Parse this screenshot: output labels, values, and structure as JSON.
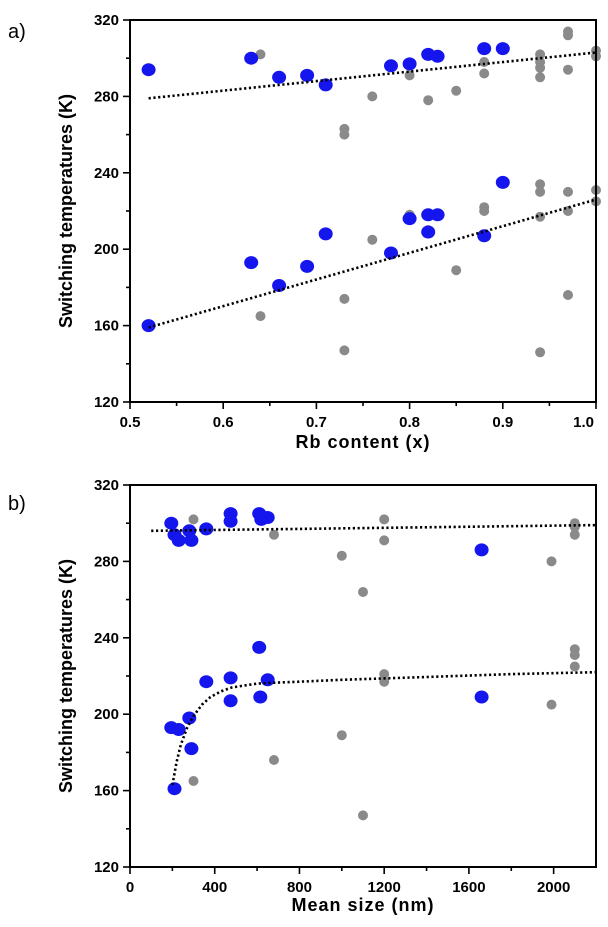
{
  "colors": {
    "blue": "#1515ee",
    "gray": "#8a8a8a",
    "axis": "#000000"
  },
  "chart_data": [
    {
      "type": "scatter",
      "panel_label": "a)",
      "title": "",
      "xlabel": "Rb content (x)",
      "ylabel": "Switching temperatures (K)",
      "xlim": [
        0.5,
        1.0
      ],
      "ylim": [
        120,
        320
      ],
      "xticks": [
        0.5,
        0.6,
        0.7,
        0.8,
        0.9,
        1.0
      ],
      "xtick_labels": [
        "0.5",
        "0.6",
        "0.7",
        "0.8",
        "0.9",
        "1.0"
      ],
      "yticks": [
        120,
        160,
        200,
        240,
        280,
        320
      ],
      "ytick_labels": [
        "120",
        "160",
        "200",
        "240",
        "280",
        "320"
      ],
      "grid": false,
      "series": [
        {
          "color": "#1515ee",
          "points": [
            [
              0.52,
              294
            ],
            [
              0.63,
              300
            ],
            [
              0.66,
              290
            ],
            [
              0.69,
              291
            ],
            [
              0.71,
              286
            ],
            [
              0.78,
              296
            ],
            [
              0.8,
              297
            ],
            [
              0.82,
              302
            ],
            [
              0.83,
              301
            ],
            [
              0.88,
              305
            ],
            [
              0.9,
              305
            ],
            [
              0.52,
              160
            ],
            [
              0.63,
              193
            ],
            [
              0.66,
              181
            ],
            [
              0.69,
              191
            ],
            [
              0.71,
              208
            ],
            [
              0.78,
              198
            ],
            [
              0.8,
              216
            ],
            [
              0.82,
              218
            ],
            [
              0.83,
              218
            ],
            [
              0.82,
              209
            ],
            [
              0.88,
              207
            ],
            [
              0.9,
              235
            ]
          ]
        },
        {
          "color": "#8a8a8a",
          "points": [
            [
              0.64,
              302
            ],
            [
              0.73,
              263
            ],
            [
              0.73,
              260
            ],
            [
              0.76,
              280
            ],
            [
              0.8,
              291
            ],
            [
              0.82,
              278
            ],
            [
              0.85,
              283
            ],
            [
              0.88,
              298
            ],
            [
              0.88,
              292
            ],
            [
              0.94,
              302
            ],
            [
              0.94,
              298
            ],
            [
              0.94,
              295
            ],
            [
              0.94,
              290
            ],
            [
              0.97,
              314
            ],
            [
              0.97,
              312
            ],
            [
              0.97,
              294
            ],
            [
              1.0,
              304
            ],
            [
              1.0,
              301
            ],
            [
              0.64,
              165
            ],
            [
              0.73,
              174
            ],
            [
              0.73,
              147
            ],
            [
              0.76,
              205
            ],
            [
              0.8,
              218
            ],
            [
              0.82,
              210
            ],
            [
              0.85,
              189
            ],
            [
              0.88,
              222
            ],
            [
              0.88,
              220
            ],
            [
              0.94,
              234
            ],
            [
              0.94,
              230
            ],
            [
              0.94,
              217
            ],
            [
              0.94,
              146
            ],
            [
              0.97,
              230
            ],
            [
              0.97,
              220
            ],
            [
              0.97,
              176
            ],
            [
              1.0,
              231
            ],
            [
              1.0,
              225
            ]
          ]
        }
      ],
      "fit_lines": [
        {
          "x": [
            0.52,
            1.0
          ],
          "y": [
            279,
            303
          ]
        },
        {
          "x": [
            0.52,
            1.0
          ],
          "y": [
            159,
            226
          ]
        }
      ]
    },
    {
      "type": "scatter",
      "panel_label": "b)",
      "title": "",
      "xlabel": "Mean size (nm)",
      "ylabel": "Switching temperatures (K)",
      "xlim": [
        0,
        2200
      ],
      "ylim": [
        120,
        320
      ],
      "xticks": [
        0,
        400,
        800,
        1200,
        1600,
        2000
      ],
      "xtick_labels": [
        "0",
        "400",
        "800",
        "1200",
        "1600",
        "2000"
      ],
      "yticks": [
        120,
        160,
        200,
        240,
        280,
        320
      ],
      "ytick_labels": [
        "120",
        "160",
        "200",
        "240",
        "280",
        "320"
      ],
      "grid": false,
      "series": [
        {
          "color": "#1515ee",
          "points": [
            [
              195,
              300
            ],
            [
              210,
              294
            ],
            [
              230,
              291
            ],
            [
              280,
              296
            ],
            [
              290,
              291
            ],
            [
              360,
              297
            ],
            [
              475,
              305
            ],
            [
              475,
              301
            ],
            [
              610,
              305
            ],
            [
              620,
              302
            ],
            [
              650,
              303
            ],
            [
              1660,
              286
            ],
            [
              195,
              193
            ],
            [
              210,
              161
            ],
            [
              230,
              192
            ],
            [
              280,
              198
            ],
            [
              290,
              182
            ],
            [
              360,
              217
            ],
            [
              475,
              207
            ],
            [
              475,
              219
            ],
            [
              610,
              235
            ],
            [
              615,
              209
            ],
            [
              650,
              218
            ],
            [
              1660,
              209
            ]
          ]
        },
        {
          "color": "#8a8a8a",
          "points": [
            [
              300,
              302
            ],
            [
              680,
              294
            ],
            [
              1000,
              283
            ],
            [
              1100,
              264
            ],
            [
              1200,
              302
            ],
            [
              1200,
              291
            ],
            [
              1990,
              280
            ],
            [
              2100,
              300
            ],
            [
              2100,
              298
            ],
            [
              2100,
              294
            ],
            [
              300,
              165
            ],
            [
              680,
              176
            ],
            [
              1000,
              189
            ],
            [
              1100,
              147
            ],
            [
              1200,
              221
            ],
            [
              1200,
              217
            ],
            [
              1990,
              205
            ],
            [
              2100,
              234
            ],
            [
              2100,
              231
            ],
            [
              2100,
              225
            ]
          ]
        }
      ],
      "fit_lines": [
        {
          "x": [
            100,
            2200
          ],
          "y": [
            296,
            299
          ]
        },
        {
          "x": [
            200,
            220,
            240,
            270,
            300,
            340,
            380,
            430,
            480,
            540,
            600,
            680,
            800,
            1000,
            1400,
            1800,
            2200
          ],
          "y": [
            163,
            175,
            184,
            193,
            199,
            205,
            209,
            212,
            214,
            215,
            216,
            216.5,
            217,
            218,
            219.5,
            221,
            222
          ]
        }
      ]
    }
  ]
}
